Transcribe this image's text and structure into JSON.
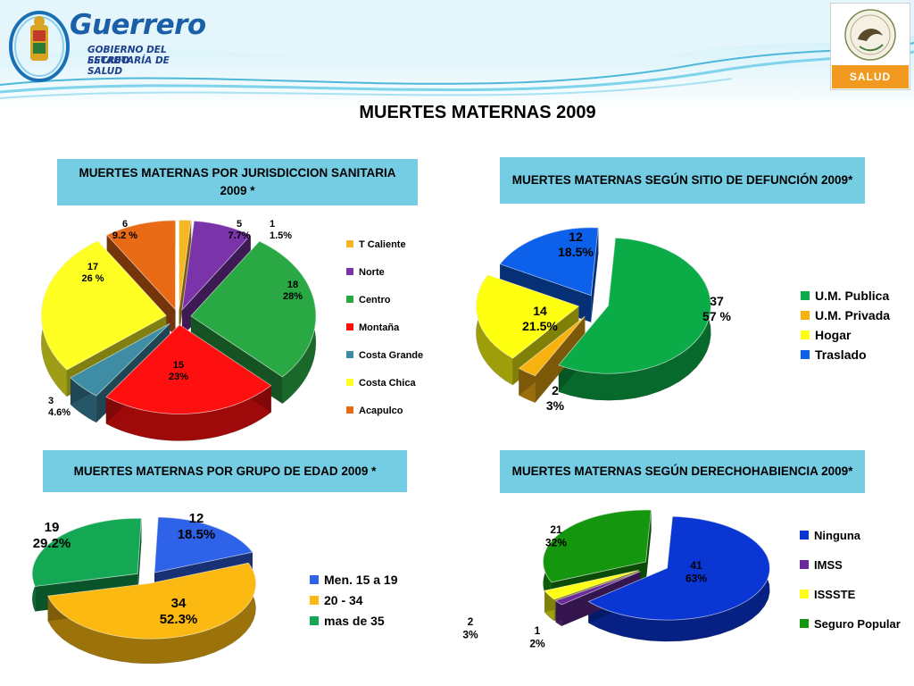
{
  "header": {
    "brand": "Guerrero",
    "subtitle_line1": "GOBIERNO DEL ESTADO",
    "subtitle_line2": "SECRETARÍA DE SALUD",
    "right_logo_label": "SALUD"
  },
  "main_title": "MUERTES MATERNAS 2009",
  "colors": {
    "panel_title_bg": "#74cde3",
    "header_wave": "#7fd3ea",
    "salud_band": "#f19a1f"
  },
  "chart_data": [
    {
      "type": "pie",
      "title": "MUERTES MATERNAS POR JURISDICCION SANITARIA 2009 *",
      "legend_position": "right",
      "slices": [
        {
          "name": "T Caliente",
          "value": 1,
          "pct_label": "1.5%",
          "color": "#f7b722"
        },
        {
          "name": "Norte",
          "value": 5,
          "pct_label": "7.7%",
          "color": "#7a33a8"
        },
        {
          "name": "Centro",
          "value": 18,
          "pct_label": "28%",
          "color": "#2aa843"
        },
        {
          "name": "Montaña",
          "value": 15,
          "pct_label": "23%",
          "color": "#ff1010"
        },
        {
          "name": "Costa Grande",
          "value": 3,
          "pct_label": "4.6%",
          "color": "#3e8da5"
        },
        {
          "name": "Costa Chica",
          "value": 17,
          "pct_label": "26 %",
          "color": "#ffff24"
        },
        {
          "name": "Acapulco",
          "value": 6,
          "pct_label": "9.2 %",
          "color": "#e86a15"
        }
      ]
    },
    {
      "type": "pie",
      "title": "MUERTES MATERNAS SEGÚN SITIO DE DEFUNCIÓN 2009*",
      "legend_position": "right",
      "slices": [
        {
          "name": "U.M. Publica",
          "value": 37,
          "pct_label": "57 %",
          "color": "#0bab47"
        },
        {
          "name": "U.M. Privada",
          "value": 2,
          "pct_label": "3%",
          "color": "#f7b210"
        },
        {
          "name": "Hogar",
          "value": 14,
          "pct_label": "21.5%",
          "color": "#ffff10"
        },
        {
          "name": "Traslado",
          "value": 12,
          "pct_label": "18.5%",
          "color": "#0c60ea"
        }
      ]
    },
    {
      "type": "pie",
      "title": "MUERTES MATERNAS POR GRUPO DE EDAD 2009 *",
      "legend_position": "right",
      "slices": [
        {
          "name": "Men. 15 a 19",
          "value": 12,
          "pct_label": "18.5%",
          "color": "#2e62e8"
        },
        {
          "name": "20 - 34",
          "value": 34,
          "pct_label": "52.3%",
          "color": "#fbb912"
        },
        {
          "name": "mas de 35",
          "value": 19,
          "pct_label": "29.2%",
          "color": "#14a854"
        }
      ]
    },
    {
      "type": "pie",
      "title": "MUERTES MATERNAS SEGÚN DERECHOHABIENCIA 2009*",
      "legend_position": "right",
      "slices": [
        {
          "name": "Ninguna",
          "value": 41,
          "pct_label": "63%",
          "color": "#0a36d4"
        },
        {
          "name": "IMSS",
          "value": 1,
          "pct_label": "2%",
          "color": "#6a2a9a"
        },
        {
          "name": "ISSSTE",
          "value": 2,
          "pct_label": "3%",
          "color": "#ffff18"
        },
        {
          "name": "Seguro Popular",
          "value": 21,
          "pct_label": "32%",
          "color": "#15960f"
        }
      ]
    }
  ]
}
